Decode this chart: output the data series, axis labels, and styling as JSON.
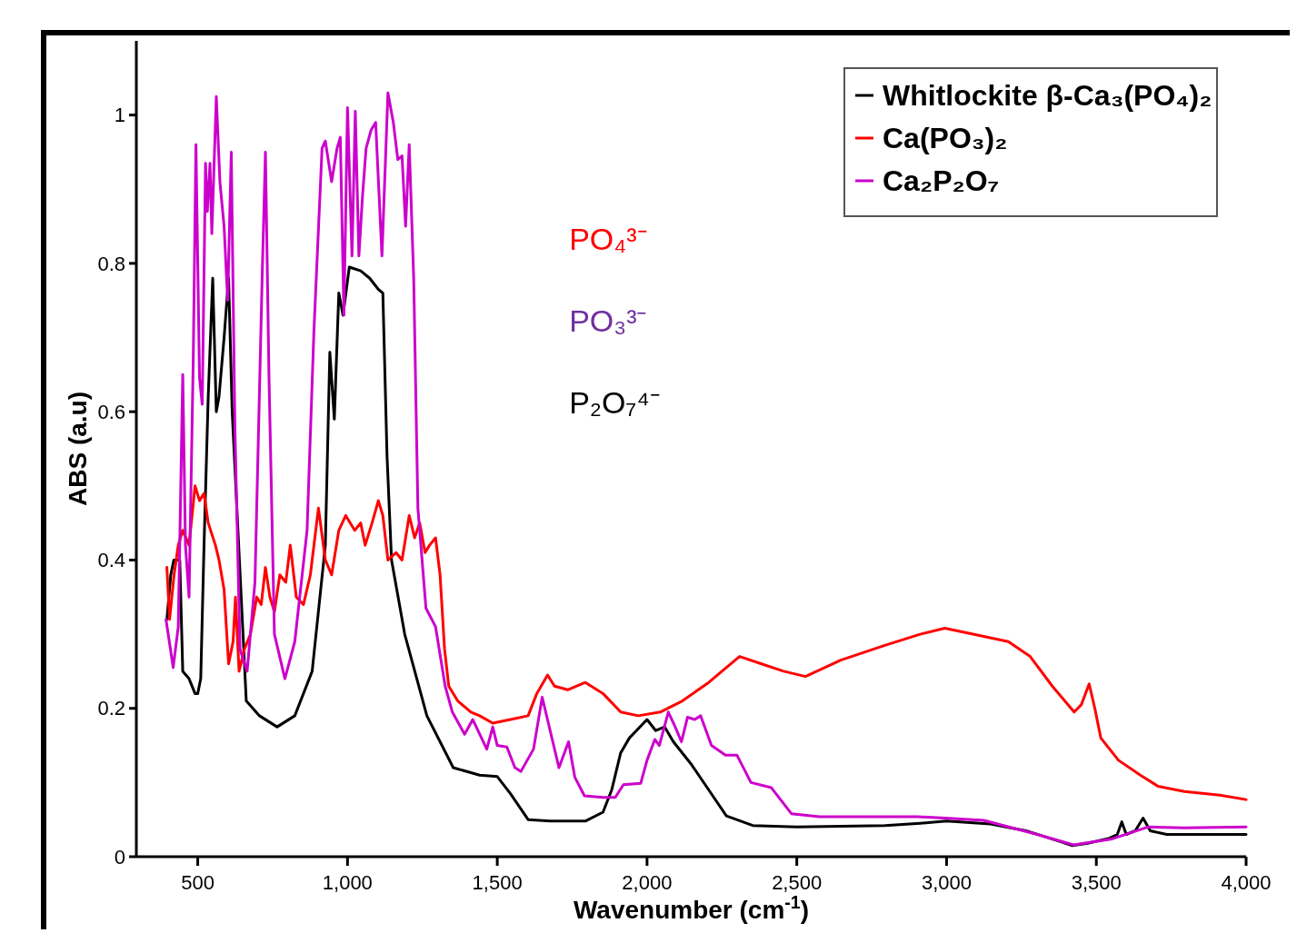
{
  "chart_data": {
    "type": "line",
    "xlabel": "Wavenumber (cm$^{-1}$)",
    "ylabel": "ABS (a.u)",
    "xlim": [
      295,
      4000
    ],
    "ylim": [
      0,
      1.1
    ],
    "xticks": [
      500,
      {
        "value": 1000,
        "label": "1,000"
      },
      {
        "value": 1500,
        "label": "1,500"
      },
      {
        "value": 2000,
        "label": "2,000"
      },
      {
        "value": 2500,
        "label": "2,500"
      },
      {
        "value": 3000,
        "label": "3,000"
      },
      {
        "value": 3500,
        "label": "3,500"
      },
      {
        "value": 4000,
        "label": "4,000"
      }
    ],
    "yticks": [
      0,
      0.2,
      0.4,
      0.6,
      0.8,
      1
    ],
    "grid": false,
    "legend": "top right",
    "marker": "none",
    "line_style": "solid",
    "annotations": [
      "PO₄³⁻",
      "PO₃³⁻",
      "P₂O₇⁴⁻"
    ],
    "series": [
      {
        "name": "Whitlockite β-Ca₃(PO₄)₂",
        "color": "#000000",
        "x": [
          397,
          410,
          420,
          440,
          450,
          471,
          491,
          500,
          510,
          521,
          535,
          550,
          562,
          571,
          588,
          603,
          615,
          662,
          706,
          765,
          824,
          882,
          926,
          941,
          956,
          971,
          985,
          1006,
          1044,
          1074,
          1103,
          1118,
          1132,
          1147,
          1191,
          1265,
          1353,
          1441,
          1500,
          1544,
          1603,
          1676,
          1794,
          1853,
          1882,
          1912,
          1941,
          2000,
          2029,
          2059,
          2088,
          2147,
          2206,
          2265,
          2353,
          2500,
          2794,
          2912,
          3000,
          3147,
          3265,
          3382,
          3420,
          3471,
          3544,
          3570,
          3585,
          3600,
          3630,
          3656,
          3680,
          3735,
          3850,
          4000
        ],
        "values": [
          0.32,
          0.38,
          0.4,
          0.4,
          0.25,
          0.24,
          0.22,
          0.22,
          0.24,
          0.42,
          0.62,
          0.78,
          0.6,
          0.62,
          0.7,
          0.78,
          0.6,
          0.21,
          0.19,
          0.175,
          0.19,
          0.25,
          0.42,
          0.68,
          0.59,
          0.76,
          0.73,
          0.795,
          0.79,
          0.78,
          0.765,
          0.76,
          0.54,
          0.4,
          0.3,
          0.19,
          0.12,
          0.11,
          0.108,
          0.085,
          0.05,
          0.048,
          0.048,
          0.06,
          0.09,
          0.14,
          0.16,
          0.185,
          0.17,
          0.175,
          0.155,
          0.125,
          0.09,
          0.055,
          0.042,
          0.04,
          0.042,
          0.045,
          0.048,
          0.044,
          0.035,
          0.02,
          0.015,
          0.018,
          0.025,
          0.03,
          0.047,
          0.03,
          0.035,
          0.052,
          0.035,
          0.03,
          0.03,
          0.03
        ]
      },
      {
        "name": "Ca(PO₃)₂",
        "color": "#ff0000",
        "x": [
          397,
          406,
          421,
          435,
          450,
          471,
          491,
          506,
          521,
          535,
          559,
          571,
          588,
          603,
          618,
          626,
          638,
          656,
          676,
          697,
          712,
          726,
          741,
          756,
          774,
          794,
          809,
          829,
          853,
          876,
          903,
          926,
          947,
          971,
          994,
          1024,
          1044,
          1059,
          1082,
          1103,
          1118,
          1135,
          1162,
          1182,
          1206,
          1224,
          1241,
          1259,
          1274,
          1294,
          1309,
          1324,
          1338,
          1368,
          1412,
          1441,
          1485,
          1544,
          1603,
          1632,
          1668,
          1691,
          1735,
          1794,
          1853,
          1912,
          1971,
          2044,
          2118,
          2206,
          2250,
          2309,
          2382,
          2456,
          2529,
          2647,
          2794,
          2912,
          2994,
          3088,
          3206,
          3279,
          3353,
          3426,
          3450,
          3476,
          3495,
          3515,
          3574,
          3647,
          3706,
          3794,
          3912,
          4000
        ],
        "values": [
          0.39,
          0.32,
          0.38,
          0.42,
          0.44,
          0.42,
          0.5,
          0.48,
          0.49,
          0.45,
          0.42,
          0.4,
          0.36,
          0.26,
          0.29,
          0.35,
          0.25,
          0.28,
          0.3,
          0.35,
          0.34,
          0.39,
          0.35,
          0.33,
          0.38,
          0.37,
          0.42,
          0.35,
          0.34,
          0.38,
          0.47,
          0.4,
          0.38,
          0.44,
          0.46,
          0.44,
          0.45,
          0.42,
          0.45,
          0.48,
          0.46,
          0.4,
          0.41,
          0.4,
          0.46,
          0.43,
          0.45,
          0.41,
          0.42,
          0.43,
          0.38,
          0.28,
          0.23,
          0.21,
          0.195,
          0.19,
          0.18,
          0.185,
          0.19,
          0.22,
          0.245,
          0.23,
          0.225,
          0.235,
          0.22,
          0.195,
          0.19,
          0.195,
          0.21,
          0.235,
          0.25,
          0.27,
          0.26,
          0.25,
          0.243,
          0.265,
          0.285,
          0.3,
          0.308,
          0.3,
          0.29,
          0.27,
          0.23,
          0.195,
          0.205,
          0.233,
          0.2,
          0.16,
          0.13,
          0.11,
          0.095,
          0.088,
          0.083,
          0.077
        ]
      },
      {
        "name": "Ca₂P₂O₇",
        "color": "#cc00cc",
        "x": [
          394,
          418,
          435,
          450,
          459,
          471,
          485,
          494,
          506,
          515,
          526,
          532,
          541,
          547,
          562,
          574,
          588,
          600,
          612,
          624,
          641,
          665,
          691,
          715,
          726,
          738,
          756,
          791,
          824,
          865,
          888,
          915,
          926,
          947,
          965,
          976,
          988,
          1000,
          1015,
          1026,
          1038,
          1050,
          1062,
          1079,
          1094,
          1115,
          1135,
          1153,
          1168,
          1182,
          1194,
          1206,
          1221,
          1235,
          1262,
          1294,
          1326,
          1350,
          1391,
          1418,
          1465,
          1485,
          1500,
          1532,
          1559,
          1579,
          1621,
          1650,
          1706,
          1738,
          1759,
          1791,
          1853,
          1894,
          1921,
          1979,
          2000,
          2026,
          2041,
          2071,
          2094,
          2115,
          2135,
          2159,
          2179,
          2215,
          2262,
          2300,
          2347,
          2415,
          2482,
          2576,
          2903,
          2994,
          3124,
          3294,
          3424,
          3553,
          3672,
          3794,
          4000
        ],
        "values": [
          0.32,
          0.255,
          0.31,
          0.65,
          0.42,
          0.35,
          0.67,
          0.96,
          0.645,
          0.61,
          0.935,
          0.87,
          0.935,
          0.84,
          1.025,
          0.91,
          0.85,
          0.75,
          0.95,
          0.58,
          0.28,
          0.25,
          0.37,
          0.78,
          0.95,
          0.645,
          0.3,
          0.24,
          0.29,
          0.44,
          0.71,
          0.955,
          0.965,
          0.91,
          0.955,
          0.97,
          0.73,
          1.01,
          0.81,
          1.005,
          0.81,
          0.89,
          0.955,
          0.98,
          0.99,
          0.81,
          1.03,
          0.99,
          0.94,
          0.945,
          0.85,
          0.96,
          0.78,
          0.47,
          0.335,
          0.31,
          0.23,
          0.195,
          0.165,
          0.185,
          0.145,
          0.175,
          0.15,
          0.148,
          0.12,
          0.115,
          0.145,
          0.215,
          0.12,
          0.155,
          0.107,
          0.082,
          0.08,
          0.08,
          0.097,
          0.099,
          0.13,
          0.158,
          0.15,
          0.195,
          0.175,
          0.155,
          0.188,
          0.185,
          0.19,
          0.15,
          0.137,
          0.137,
          0.1,
          0.093,
          0.058,
          0.054,
          0.054,
          0.052,
          0.049,
          0.031,
          0.016,
          0.024,
          0.04,
          0.039,
          0.04
        ]
      }
    ]
  }
}
